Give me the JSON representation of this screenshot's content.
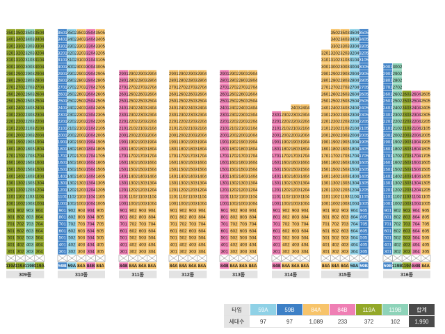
{
  "colors": {
    "59A": "#8fd1e6",
    "59B": "#3d80c6",
    "84A": "#f7c46b",
    "84B": "#ef7fb4",
    "119A": "#93a829",
    "119B": "#8ed3b9",
    "total": "#4a4a4a"
  },
  "floor_range": [
    2,
    35
  ],
  "buildings": [
    {
      "name": "309동",
      "units": [
        {
          "code": "01",
          "type": "119A",
          "top": 35
        },
        {
          "code": "02",
          "type": "119A",
          "top": 35
        },
        {
          "code": "03",
          "type": "119B",
          "top": 35
        },
        {
          "code": "04",
          "type": "119A",
          "top": 35
        }
      ]
    },
    {
      "name": "310동",
      "units": [
        {
          "code": "01",
          "type": "59B",
          "top": 35
        },
        {
          "code": "02",
          "type": "59A",
          "top": 35
        },
        {
          "code": "03",
          "type": "84A",
          "top": 35
        },
        {
          "code": "04",
          "type": "84B",
          "top": 35
        },
        {
          "code": "05",
          "type": "84A",
          "top": 35
        }
      ]
    },
    {
      "name": "311동",
      "units": [
        {
          "code": "01",
          "type": "84B",
          "top": 29
        },
        {
          "code": "02",
          "type": "84A",
          "top": 29
        },
        {
          "code": "03",
          "type": "84A",
          "top": 29
        },
        {
          "code": "04",
          "type": "84A",
          "top": 29
        }
      ]
    },
    {
      "name": "312동",
      "units": [
        {
          "code": "01",
          "type": "84A",
          "top": 29
        },
        {
          "code": "02",
          "type": "84A",
          "top": 29
        },
        {
          "code": "03",
          "type": "84A",
          "top": 29
        },
        {
          "code": "04",
          "type": "84A",
          "top": 29
        }
      ]
    },
    {
      "name": "313동",
      "units": [
        {
          "code": "01",
          "type": "84B",
          "top": 29
        },
        {
          "code": "02",
          "type": "84A",
          "top": 29
        },
        {
          "code": "03",
          "type": "84A",
          "top": 29
        },
        {
          "code": "04",
          "type": "84A",
          "top": 29
        }
      ]
    },
    {
      "name": "314동",
      "units": [
        {
          "code": "01",
          "type": "84B",
          "top": 23
        },
        {
          "code": "02",
          "type": "84A",
          "top": 23
        },
        {
          "code": "03",
          "type": "84A",
          "top": 24
        },
        {
          "code": "04",
          "type": "84A",
          "top": 24
        }
      ]
    },
    {
      "name": "315동",
      "units": [
        {
          "code": "01",
          "type": "84A",
          "top": 32
        },
        {
          "code": "02",
          "type": "84A",
          "top": 35
        },
        {
          "code": "03",
          "type": "84A",
          "top": 35
        },
        {
          "code": "04",
          "type": "59A",
          "top": 35
        },
        {
          "code": "05",
          "type": "59B",
          "top": 35
        }
      ]
    },
    {
      "name": "316동",
      "units": [
        {
          "code": "01",
          "type": "59B",
          "top": 30
        },
        {
          "code": "02",
          "type": "119B",
          "top": 30
        },
        {
          "code": "03",
          "type": "119A",
          "top": 26
        },
        {
          "code": "04",
          "type": "84B",
          "top": 26
        },
        {
          "code": "05",
          "type": "84A",
          "top": 26
        }
      ]
    }
  ],
  "legend": {
    "type_header": "타입",
    "count_header": "세대수",
    "columns": [
      {
        "type": "59A",
        "label": "59A",
        "count": "97"
      },
      {
        "type": "59B",
        "label": "59B",
        "count": "97"
      },
      {
        "type": "84A",
        "label": "84A",
        "count": "1,089"
      },
      {
        "type": "84B",
        "label": "84B",
        "count": "233"
      },
      {
        "type": "119A",
        "label": "119A",
        "count": "372"
      },
      {
        "type": "119B",
        "label": "119B",
        "count": "102"
      },
      {
        "type": "total",
        "label": "합계",
        "count": "1,990"
      }
    ]
  }
}
